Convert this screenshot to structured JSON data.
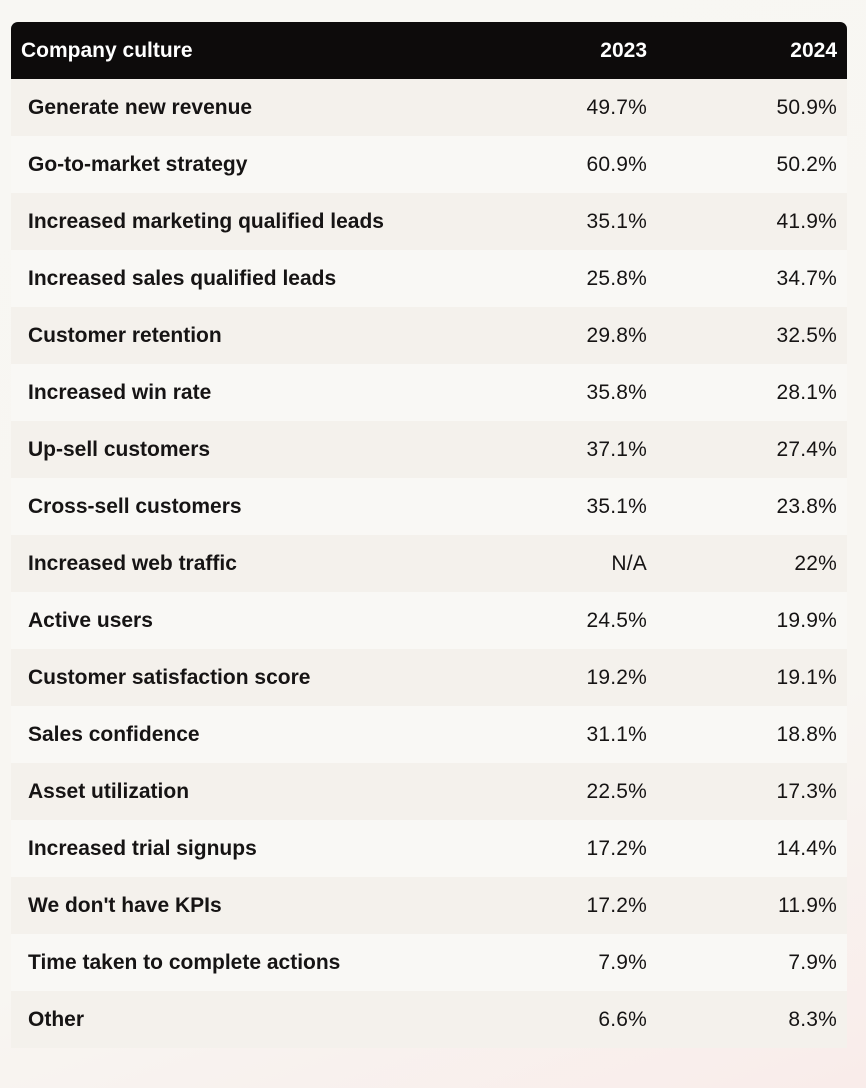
{
  "chart_data": {
    "type": "table",
    "title": "",
    "columns": [
      "Company culture",
      "2023",
      "2024"
    ],
    "rows": [
      {
        "label": "Generate new revenue",
        "y2023": "49.7%",
        "y2024": "50.9%"
      },
      {
        "label": "Go-to-market strategy",
        "y2023": "60.9%",
        "y2024": "50.2%"
      },
      {
        "label": "Increased marketing qualified leads",
        "y2023": "35.1%",
        "y2024": "41.9%"
      },
      {
        "label": "Increased sales qualified leads",
        "y2023": "25.8%",
        "y2024": "34.7%"
      },
      {
        "label": "Customer retention",
        "y2023": "29.8%",
        "y2024": "32.5%"
      },
      {
        "label": "Increased win rate",
        "y2023": "35.8%",
        "y2024": "28.1%"
      },
      {
        "label": "Up-sell customers",
        "y2023": "37.1%",
        "y2024": "27.4%"
      },
      {
        "label": "Cross-sell customers",
        "y2023": "35.1%",
        "y2024": "23.8%"
      },
      {
        "label": "Increased web traffic",
        "y2023": "N/A",
        "y2024": "22%"
      },
      {
        "label": "Active users",
        "y2023": "24.5%",
        "y2024": "19.9%"
      },
      {
        "label": "Customer satisfaction score",
        "y2023": "19.2%",
        "y2024": "19.1%"
      },
      {
        "label": "Sales confidence",
        "y2023": "31.1%",
        "y2024": "18.8%"
      },
      {
        "label": "Asset utilization",
        "y2023": "22.5%",
        "y2024": "17.3%"
      },
      {
        "label": "Increased trial signups",
        "y2023": "17.2%",
        "y2024": "14.4%"
      },
      {
        "label": "We don't have KPIs",
        "y2023": "17.2%",
        "y2024": "11.9%"
      },
      {
        "label": "Time taken to complete actions",
        "y2023": "7.9%",
        "y2024": "7.9%"
      },
      {
        "label": "Other",
        "y2023": "6.6%",
        "y2024": "8.3%"
      }
    ]
  },
  "colors": {
    "header_bg": "#0d0b0b",
    "header_text": "#ffffff",
    "row_odd": "#f4f1ec",
    "row_even": "#f9f8f5",
    "text": "#161414"
  }
}
